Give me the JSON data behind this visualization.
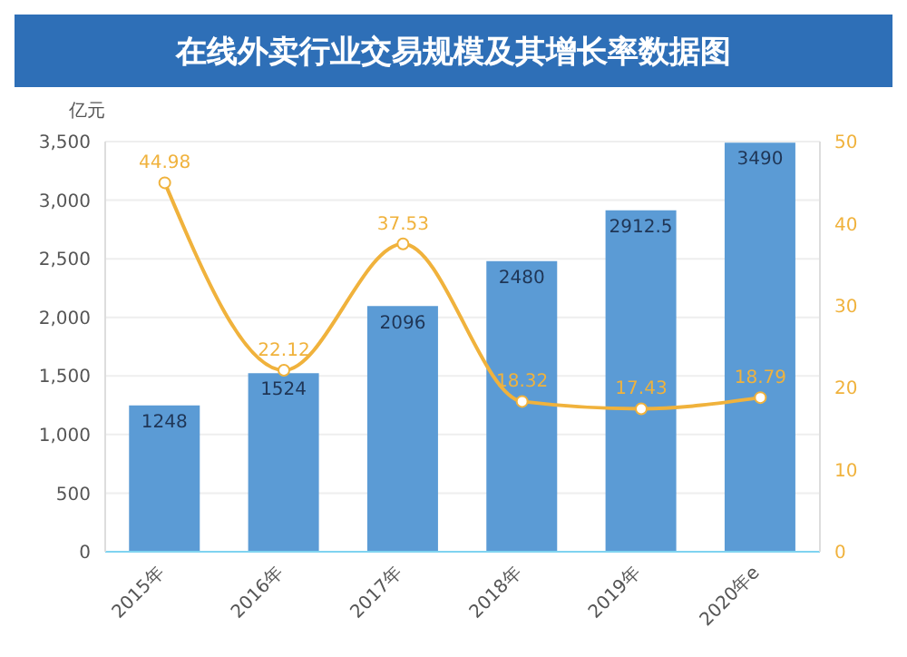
{
  "chart_data": {
    "type": "bar",
    "title": "在线外卖行业交易规模及其增长率数据图",
    "ylabel": "亿元",
    "categories": [
      "2015年",
      "2016年",
      "2017年",
      "2018年",
      "2019年",
      "2020年e"
    ],
    "series": [
      {
        "color": "#5b9bd5",
        "values": [
          1248,
          1524,
          2096,
          2480,
          2912.5,
          3490
        ]
      },
      {
        "type": "line",
        "axis": "y2",
        "color": "#f0b23c",
        "values": [
          44.98,
          22.12,
          37.53,
          18.32,
          17.43,
          18.79
        ]
      }
    ],
    "ylim": [
      0,
      3500
    ],
    "yticks": [
      0,
      500,
      {
        "value": 1000,
        "label": "1,000"
      },
      {
        "value": 1500,
        "label": "1,500"
      },
      {
        "value": 2000,
        "label": "2,000"
      },
      {
        "value": 2500,
        "label": "2,500"
      },
      {
        "value": 3000,
        "label": "3,000"
      },
      {
        "value": 3500,
        "label": "3,500"
      }
    ],
    "y2lim": [
      0,
      50
    ],
    "y2ticks": [
      0,
      10,
      20,
      30,
      40,
      50
    ],
    "grid": "y",
    "marker": "circle",
    "data_labels": true
  }
}
